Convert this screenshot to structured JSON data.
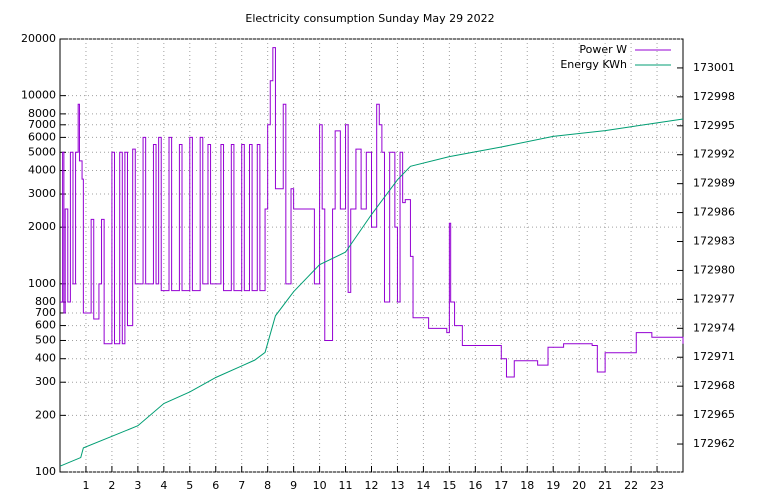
{
  "chart_data": {
    "type": "line",
    "title": "Electricity consumption Sunday May 29 2022",
    "xlim": [
      0,
      24
    ],
    "xticks": [
      1,
      2,
      3,
      4,
      5,
      6,
      7,
      8,
      9,
      10,
      11,
      12,
      13,
      14,
      15,
      16,
      17,
      18,
      19,
      20,
      21,
      22,
      23
    ],
    "ylim": [
      100,
      20000
    ],
    "yscale": "log",
    "yticks": [
      100,
      200,
      300,
      400,
      500,
      600,
      700,
      800,
      1000,
      2000,
      3000,
      4000,
      5000,
      6000,
      7000,
      8000,
      10000,
      20000
    ],
    "y2lim": [
      172959.1,
      173004
    ],
    "y2ticks": [
      172962,
      172965,
      172968,
      172971,
      172974,
      172977,
      172980,
      172983,
      172986,
      172989,
      172992,
      172995,
      172998,
      173001
    ],
    "grid": true,
    "legend": "top-right",
    "series": [
      {
        "name": "Power W",
        "color": "#9400d3",
        "style": "steps",
        "x": [
          0,
          0.1,
          0.15,
          0.2,
          0.3,
          0.4,
          0.5,
          0.6,
          0.7,
          0.75,
          0.85,
          0.9,
          1.1,
          1.2,
          1.3,
          1.5,
          1.6,
          1.7,
          2.0,
          2.1,
          2.3,
          2.4,
          2.5,
          2.6,
          2.8,
          2.9,
          3.2,
          3.3,
          3.6,
          3.7,
          3.8,
          3.9,
          4.2,
          4.3,
          4.6,
          4.7,
          5.0,
          5.1,
          5.4,
          5.5,
          5.7,
          5.8,
          6.2,
          6.3,
          6.6,
          6.7,
          7.0,
          7.1,
          7.3,
          7.4,
          7.6,
          7.7,
          7.9,
          8.0,
          8.1,
          8.2,
          8.3,
          8.5,
          8.6,
          8.7,
          8.9,
          9.0,
          9.2,
          9.4,
          9.6,
          9.8,
          10.0,
          10.1,
          10.2,
          10.5,
          10.6,
          10.8,
          11.0,
          11.1,
          11.2,
          11.4,
          11.6,
          11.8,
          12.0,
          12.2,
          12.3,
          12.4,
          12.5,
          12.7,
          12.9,
          13.0,
          13.1,
          13.2,
          13.3,
          13.5,
          13.6,
          14.0,
          14.2,
          14.9,
          15.0,
          15.05,
          15.2,
          15.5,
          17.0,
          17.2,
          17.5,
          18.4,
          18.8,
          19.4,
          20.5,
          20.7,
          21.0,
          22.2,
          22.8,
          24.0
        ],
        "values": [
          800,
          5000,
          700,
          2500,
          800,
          5000,
          1000,
          5000,
          9000,
          4500,
          3600,
          700,
          700,
          2200,
          650,
          1000,
          2200,
          480,
          5000,
          480,
          5000,
          480,
          5000,
          600,
          5200,
          1000,
          6000,
          1000,
          5500,
          1000,
          6000,
          920,
          6000,
          920,
          5500,
          920,
          6000,
          920,
          6000,
          1000,
          5500,
          1000,
          5500,
          920,
          5500,
          920,
          5500,
          920,
          5500,
          920,
          5500,
          920,
          2500,
          7000,
          12000,
          18000,
          3200,
          3200,
          9000,
          1000,
          3200,
          2500,
          2500,
          2500,
          2500,
          1000,
          7000,
          2500,
          500,
          2500,
          6500,
          2500,
          7000,
          900,
          2500,
          5200,
          2500,
          5000,
          2000,
          9000,
          7000,
          5000,
          800,
          5000,
          2000,
          800,
          5000,
          2700,
          2800,
          1400,
          660,
          660,
          580,
          550,
          2100,
          800,
          600,
          470,
          400,
          320,
          390,
          370,
          460,
          480,
          470,
          340,
          430,
          550,
          520,
          480
        ]
      },
      {
        "name": "Energy KWh",
        "color": "#009e73",
        "axis": "y2",
        "style": "lines",
        "x": [
          0,
          0.8,
          0.9,
          2,
          3,
          4,
          5,
          6,
          7,
          7.5,
          7.9,
          8.3,
          9,
          10,
          11,
          12,
          13,
          13.5,
          15,
          17,
          19,
          21,
          23,
          24
        ],
        "values": [
          172959.7,
          172960.6,
          172961.6,
          172962.8,
          172963.9,
          172966.2,
          172967.4,
          172968.9,
          172970.1,
          172970.7,
          172971.5,
          172975.3,
          172977.8,
          172980.6,
          172981.9,
          172985.8,
          172989.4,
          172990.8,
          172991.8,
          172992.8,
          172993.9,
          172994.5,
          172995.3,
          172995.7
        ]
      }
    ]
  }
}
